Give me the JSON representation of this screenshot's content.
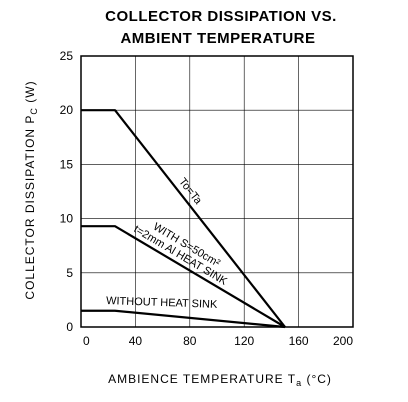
{
  "chart_data": {
    "type": "line",
    "title": [
      "COLLECTOR DISSIPATION VS.",
      "AMBIENT TEMPERATURE"
    ],
    "xlabel": "AMBIENCE TEMPERATURE T",
    "xlabel_sub": "a",
    "xlabel_unit": " (°C)",
    "ylabel": "COLLECTOR DISSIPATION P",
    "ylabel_sub": "C",
    "ylabel_unit": " (W)",
    "xlim": [
      0,
      200
    ],
    "ylim": [
      0,
      25
    ],
    "xticks": [
      0,
      40,
      80,
      120,
      160,
      200
    ],
    "yticks": [
      0,
      5,
      10,
      15,
      20,
      25
    ],
    "grid": true,
    "series": [
      {
        "name": "To=Ta",
        "x": [
          0,
          25,
          150
        ],
        "y": [
          20,
          20,
          0
        ]
      },
      {
        "name": "WITH S=50cm², t=2mm Al HEAT SINK",
        "x": [
          0,
          25,
          150
        ],
        "y": [
          9.3,
          9.3,
          0
        ]
      },
      {
        "name": "WITHOUT HEAT SINK",
        "x": [
          0,
          25,
          150
        ],
        "y": [
          1.5,
          1.5,
          0
        ]
      }
    ],
    "annotations": [
      {
        "text": "To=Ta",
        "series": 0
      },
      {
        "text": "WITH S=50cm²",
        "series": 1
      },
      {
        "text": "t=2mm Al HEAT SINK",
        "series": 1
      },
      {
        "text": "WITHOUT HEAT SINK",
        "series": 2
      }
    ]
  }
}
